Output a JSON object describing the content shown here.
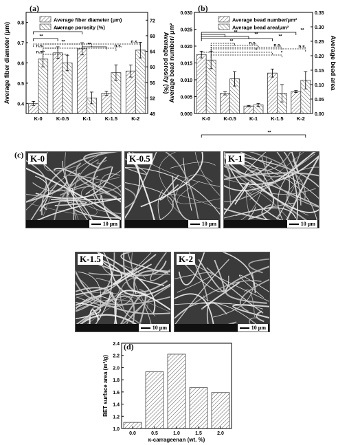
{
  "panels": {
    "a": "(a)",
    "b": "(b)",
    "c": "(c)",
    "d": "(d)"
  },
  "chart_data": [
    {
      "id": "a",
      "type": "bar",
      "categories": [
        "K-0",
        "K-0.5",
        "K-1",
        "K-1.5",
        "K-2"
      ],
      "ylabel": "Average fiber diameter (μm)",
      "y2label": "Average porosity (%)",
      "ylim": [
        0.35,
        0.85
      ],
      "y2lim": [
        48,
        74
      ],
      "yticks": [
        "0.4",
        "0.5",
        "0.6",
        "0.7",
        "0.8"
      ],
      "y2ticks": [
        "48",
        "52",
        "56",
        "60",
        "64",
        "68",
        "72"
      ],
      "legend_placement": "top-left",
      "series": [
        {
          "name": "Average fiber diameter (μm)",
          "axis": "left",
          "values": [
            0.4,
            0.65,
            0.67,
            0.45,
            0.56
          ],
          "errors": [
            0.01,
            0.03,
            0.03,
            0.01,
            0.03
          ]
        },
        {
          "name": "Average porosity (%)",
          "axis": "right",
          "values": [
            62.0,
            61.0,
            52.0,
            58.5,
            64.3
          ],
          "errors": [
            2.0,
            2.0,
            1.5,
            2.0,
            2.0
          ]
        }
      ],
      "significance": [
        "***",
        "**",
        "**",
        "n.s.",
        "n.s.",
        "n.s.",
        "n.s.",
        "**"
      ]
    },
    {
      "id": "b",
      "type": "bar",
      "categories": [
        "K-0",
        "K-0.5",
        "K-1",
        "K-1.5",
        "K-2"
      ],
      "ylabel": "Average bead number/ μm²",
      "y2label": "Average bead area",
      "ylim": [
        0,
        0.03
      ],
      "y2lim": [
        0,
        0.35
      ],
      "yticks": [
        "0.000",
        "0.005",
        "0.010",
        "0.015",
        "0.020",
        "0.025",
        "0.030"
      ],
      "y2ticks": [
        "0.00",
        "0.05",
        "0.10",
        "0.15",
        "0.20",
        "0.25",
        "0.30",
        "0.35"
      ],
      "legend_placement": "top-right",
      "series": [
        {
          "name": "Average bead number/μm²",
          "axis": "left",
          "values": [
            0.0175,
            0.006,
            0.0022,
            0.012,
            0.0065
          ],
          "errors": [
            0.001,
            0.0005,
            0.0002,
            0.0012,
            0.0003
          ]
        },
        {
          "name": "Average bead area/μm²",
          "axis": "right",
          "values": [
            0.185,
            0.12,
            0.03,
            0.07,
            0.115
          ],
          "errors": [
            0.03,
            0.025,
            0.005,
            0.03,
            0.03
          ]
        }
      ],
      "significance": [
        "**",
        "**",
        "**",
        "**",
        "**",
        "n.s.",
        "n.s.",
        "n.s.",
        "*",
        "*",
        "**"
      ]
    },
    {
      "id": "d",
      "type": "bar",
      "categories": [
        "0.0",
        "0.5",
        "1.0",
        "1.5",
        "2.0"
      ],
      "values": [
        1.1,
        1.93,
        2.22,
        1.67,
        1.59
      ],
      "xlabel": "κ-carrageenan (wt. %)",
      "ylabel": "BET surface area (m²/g)",
      "ylim": [
        1.0,
        2.4
      ],
      "yticks": [
        "1.0",
        "1.2",
        "1.4",
        "1.6",
        "1.8",
        "2.0",
        "2.2",
        "2.4"
      ]
    }
  ],
  "micrographs": [
    {
      "label": "K-0",
      "scale": "10 μm"
    },
    {
      "label": "K-0.5",
      "scale": "10 μm"
    },
    {
      "label": "K-1",
      "scale": "10 μm"
    },
    {
      "label": "K-1.5",
      "scale": "10 μm"
    },
    {
      "label": "K-2",
      "scale": "10 μm"
    }
  ],
  "colors": {
    "bar_fill": "#ffffff",
    "hatch": "#555555",
    "axis": "#000000",
    "micrograph_bg": "#3a3a3a",
    "fiber": "#e6e6e6"
  }
}
